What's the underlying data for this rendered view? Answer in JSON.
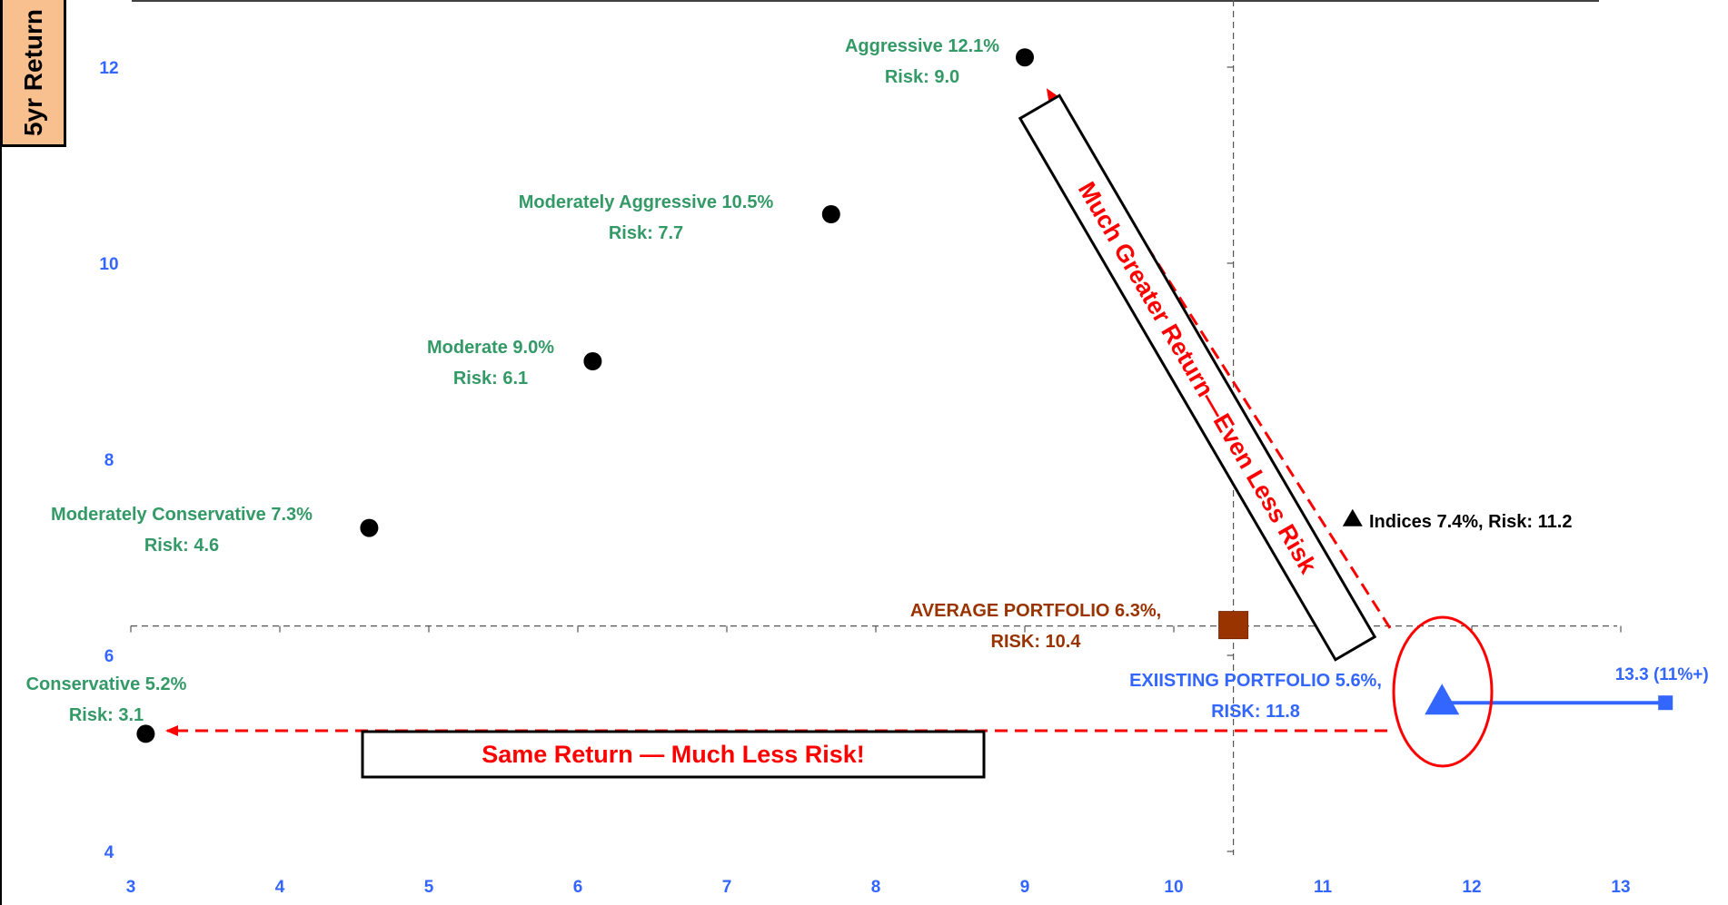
{
  "chart_data": {
    "type": "scatter",
    "ylabel": "5yr Return",
    "xlim": [
      3,
      13.5
    ],
    "ylim": [
      4,
      12.7
    ],
    "x_ticks": [
      "3",
      "4",
      "5",
      "6",
      "7",
      "8",
      "9",
      "10",
      "11",
      "12",
      "13"
    ],
    "y_ticks": [
      "4",
      "6",
      "8",
      "10",
      "12"
    ],
    "colors": {
      "model": "#339966",
      "average": "#993300",
      "existing": "#3366ff",
      "indices": "#000000",
      "arrows": "#ff0000",
      "tick_labels": "#3366ff"
    },
    "points": [
      {
        "key": "conservative",
        "x": 3.1,
        "y": 5.2,
        "marker": "circle",
        "label1": "Conservative 5.2%",
        "label2": "Risk: 3.1"
      },
      {
        "key": "mod-conservative",
        "x": 4.6,
        "y": 7.3,
        "marker": "circle",
        "label1": "Moderately Conservative 7.3%",
        "label2": "Risk: 4.6"
      },
      {
        "key": "moderate",
        "x": 6.1,
        "y": 9.0,
        "marker": "circle",
        "label1": "Moderate 9.0%",
        "label2": "Risk: 6.1"
      },
      {
        "key": "mod-aggressive",
        "x": 7.7,
        "y": 10.5,
        "marker": "circle",
        "label1": "Moderately Aggressive 10.5%",
        "label2": "Risk: 7.7"
      },
      {
        "key": "aggressive",
        "x": 9.0,
        "y": 12.1,
        "marker": "circle",
        "label1": "Aggressive 12.1%",
        "label2": "Risk: 9.0"
      },
      {
        "key": "average",
        "x": 10.4,
        "y": 6.3,
        "marker": "square",
        "label1": "AVERAGE PORTFOLIO 6.3%,",
        "label2": "RISK: 10.4"
      },
      {
        "key": "existing",
        "x": 11.8,
        "y": 5.6,
        "marker": "triangle",
        "label1": "EXIISTING PORTFOLIO 5.6%,",
        "label2": "RISK: 11.8"
      },
      {
        "key": "indices",
        "x": 11.2,
        "y": 7.4,
        "marker": "triangle",
        "label1": "Indices 7.4%, Risk: 11.2"
      }
    ],
    "existing_range": {
      "x_end": 13.3,
      "label": "13.3 (11%+)"
    },
    "reference_lines": {
      "x": 10.4,
      "y": 6.3
    },
    "annotations": {
      "same_return": "Same Return — Much Less Risk!",
      "greater_return": "Much Greater Return—Even Less Risk"
    }
  }
}
